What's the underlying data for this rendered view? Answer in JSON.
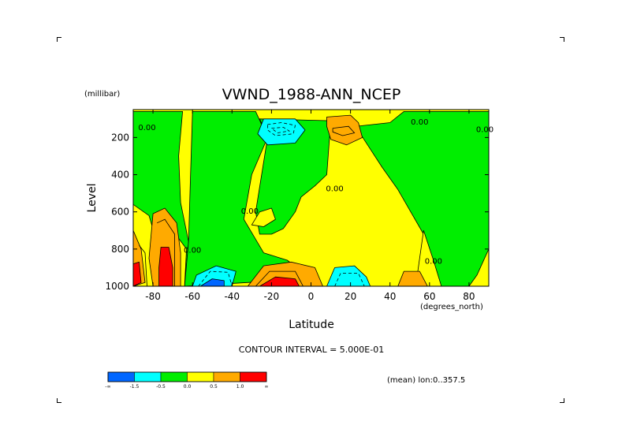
{
  "chart_data": {
    "type": "heatmap",
    "title": "VWND_1988-ANN_NCEP",
    "xlabel": "Latitude",
    "xunits": "(degrees_north)",
    "ylabel": "Level",
    "yunits": "(millibar)",
    "xlim": [
      -90,
      90
    ],
    "ylim": [
      1000,
      50
    ],
    "xticks": [
      -80,
      -60,
      -40,
      -20,
      0,
      20,
      40,
      60,
      80
    ],
    "xtick_labels": [
      "-80",
      "-60",
      "-40",
      "-20",
      "0",
      "20",
      "40",
      "60",
      "80"
    ],
    "yticks": [
      200,
      400,
      600,
      800,
      1000
    ],
    "ytick_labels": [
      "200",
      "400",
      "600",
      "800",
      "1000"
    ],
    "contour_labels": [
      {
        "text": "0.00",
        "lat": -83,
        "lev": 160
      },
      {
        "text": "0.00",
        "lat": 55,
        "lev": 130
      },
      {
        "text": "0.00",
        "lat": 88,
        "lev": 170
      },
      {
        "text": "0.00",
        "lat": 12,
        "lev": 490
      },
      {
        "text": "0.00",
        "lat": -31,
        "lev": 610
      },
      {
        "text": "0.00",
        "lat": -60,
        "lev": 820
      },
      {
        "text": "0.00",
        "lat": 62,
        "lev": 880
      }
    ],
    "contour_interval": "CONTOUR INTERVAL = 5.000E-01",
    "legend": {
      "colors": [
        "#0066ff",
        "#00ffff",
        "#00ee00",
        "#ffff00",
        "#ffaa00",
        "#ff0000"
      ],
      "labels": [
        "-∞",
        "-1.5",
        "-0.5",
        "0.0",
        "0.5",
        "1.0",
        "∞"
      ]
    },
    "footnote": "(mean) lon:0..357.5",
    "regions": [
      {
        "fill": "#00ee00",
        "points": [
          [
            -90,
            60
          ],
          [
            -65,
            60
          ],
          [
            -67,
            300
          ],
          [
            -66,
            550
          ],
          [
            -62,
            760
          ],
          [
            -64,
            1000
          ],
          [
            -90,
            1000
          ]
        ]
      },
      {
        "fill": "#00ee00",
        "points": [
          [
            -60,
            60
          ],
          [
            -28,
            60
          ],
          [
            -22,
            200
          ],
          [
            -30,
            400
          ],
          [
            -34,
            640
          ],
          [
            -24,
            820
          ],
          [
            -12,
            860
          ],
          [
            0,
            960
          ],
          [
            -64,
            1000
          ],
          [
            -62,
            760
          ],
          [
            -61,
            400
          ]
        ]
      },
      {
        "fill": "#00ee00",
        "points": [
          [
            -26,
            100
          ],
          [
            10,
            110
          ],
          [
            8,
            400
          ],
          [
            2,
            460
          ],
          [
            -5,
            520
          ],
          [
            -8,
            600
          ],
          [
            -14,
            690
          ],
          [
            -20,
            720
          ],
          [
            -26,
            720
          ],
          [
            -28,
            600
          ],
          [
            -22,
            200
          ]
        ]
      },
      {
        "fill": "#00ee00",
        "points": [
          [
            14,
            150
          ],
          [
            40,
            120
          ],
          [
            47,
            60
          ],
          [
            84,
            60
          ],
          [
            90,
            60
          ],
          [
            90,
            800
          ],
          [
            84,
            940
          ],
          [
            80,
            1000
          ],
          [
            62,
            1000
          ],
          [
            57,
            720
          ],
          [
            44,
            480
          ],
          [
            36,
            360
          ],
          [
            25,
            180
          ]
        ]
      },
      {
        "fill": "#ffff00",
        "points": [
          [
            53,
            1000
          ],
          [
            57,
            700
          ],
          [
            62,
            860
          ],
          [
            66,
            1000
          ]
        ]
      },
      {
        "fill": "#ffff00",
        "points": [
          [
            -30,
            670
          ],
          [
            -26,
            600
          ],
          [
            -20,
            580
          ],
          [
            -18,
            640
          ],
          [
            -24,
            680
          ]
        ]
      },
      {
        "fill": "#ffff00",
        "points": [
          [
            -90,
            560
          ],
          [
            -82,
            620
          ],
          [
            -77,
            800
          ],
          [
            -70,
            700
          ],
          [
            -63,
            800
          ],
          [
            -64,
            1000
          ],
          [
            -90,
            1000
          ]
        ]
      },
      {
        "fill": "#ffaa00",
        "points": [
          [
            -90,
            700
          ],
          [
            -86,
            800
          ],
          [
            -84,
            980
          ],
          [
            -90,
            1000
          ]
        ]
      },
      {
        "fill": "#ffaa00",
        "points": [
          [
            -80,
            610
          ],
          [
            -74,
            580
          ],
          [
            -68,
            660
          ],
          [
            -66,
            820
          ],
          [
            -66,
            1000
          ],
          [
            -80,
            1000
          ],
          [
            -82,
            850
          ]
        ]
      },
      {
        "fill": "#ff0000",
        "points": [
          [
            -90,
            880
          ],
          [
            -87,
            870
          ],
          [
            -86,
            980
          ],
          [
            -90,
            1000
          ]
        ]
      },
      {
        "fill": "#ff0000",
        "points": [
          [
            -76,
            790
          ],
          [
            -72,
            790
          ],
          [
            -70,
            900
          ],
          [
            -70,
            1000
          ],
          [
            -77,
            1000
          ],
          [
            -77,
            900
          ]
        ]
      },
      {
        "fill": "#00ffff",
        "points": [
          [
            -24,
            100
          ],
          [
            -8,
            100
          ],
          [
            -3,
            160
          ],
          [
            -8,
            230
          ],
          [
            -22,
            240
          ],
          [
            -27,
            180
          ]
        ]
      },
      {
        "fill": "#ffaa00",
        "points": [
          [
            8,
            90
          ],
          [
            20,
            80
          ],
          [
            24,
            120
          ],
          [
            26,
            200
          ],
          [
            18,
            240
          ],
          [
            10,
            210
          ],
          [
            8,
            140
          ]
        ]
      },
      {
        "fill": "#00ffff",
        "points": [
          [
            -60,
            1000
          ],
          [
            -58,
            940
          ],
          [
            -48,
            890
          ],
          [
            -38,
            920
          ],
          [
            -40,
            1000
          ]
        ]
      },
      {
        "fill": "#0066ff",
        "points": [
          [
            -56,
            1000
          ],
          [
            -50,
            960
          ],
          [
            -44,
            970
          ],
          [
            -44,
            1000
          ]
        ]
      },
      {
        "fill": "#ffaa00",
        "points": [
          [
            -32,
            1000
          ],
          [
            -24,
            890
          ],
          [
            -10,
            870
          ],
          [
            2,
            900
          ],
          [
            6,
            1000
          ]
        ]
      },
      {
        "fill": "#ff0000",
        "points": [
          [
            -26,
            1000
          ],
          [
            -18,
            950
          ],
          [
            -8,
            960
          ],
          [
            -6,
            1000
          ]
        ]
      },
      {
        "fill": "#00ffff",
        "points": [
          [
            8,
            1000
          ],
          [
            12,
            900
          ],
          [
            22,
            890
          ],
          [
            28,
            950
          ],
          [
            30,
            1000
          ]
        ]
      },
      {
        "fill": "#ffaa00",
        "points": [
          [
            44,
            1000
          ],
          [
            47,
            920
          ],
          [
            55,
            920
          ],
          [
            59,
            1000
          ]
        ]
      }
    ],
    "contour_lines": [
      {
        "dashed": true,
        "points": [
          [
            -22,
            130
          ],
          [
            -15,
            120
          ],
          [
            -8,
            135
          ],
          [
            -9,
            180
          ],
          [
            -18,
            190
          ],
          [
            -22,
            160
          ],
          [
            -22,
            130
          ]
        ]
      },
      {
        "dashed": true,
        "points": [
          [
            -20,
            150
          ],
          [
            -14,
            145
          ],
          [
            -11,
            165
          ],
          [
            -17,
            175
          ],
          [
            -20,
            150
          ]
        ]
      },
      {
        "dashed": false,
        "points": [
          [
            11,
            150
          ],
          [
            19,
            140
          ],
          [
            22,
            175
          ],
          [
            16,
            190
          ],
          [
            11,
            170
          ],
          [
            11,
            150
          ]
        ]
      },
      {
        "dashed": true,
        "points": [
          [
            -57,
            1000
          ],
          [
            -51,
            920
          ],
          [
            -42,
            925
          ],
          [
            -40,
            1000
          ]
        ]
      },
      {
        "dashed": true,
        "points": [
          [
            12,
            1000
          ],
          [
            15,
            930
          ],
          [
            24,
            930
          ],
          [
            27,
            1000
          ]
        ]
      },
      {
        "dashed": false,
        "points": [
          [
            -28,
            1000
          ],
          [
            -21,
            920
          ],
          [
            -8,
            920
          ],
          [
            -4,
            1000
          ]
        ]
      },
      {
        "dashed": false,
        "points": [
          [
            -87,
            780
          ],
          [
            -84,
            820
          ],
          [
            -83,
            1000
          ]
        ]
      },
      {
        "dashed": false,
        "points": [
          [
            -78,
            660
          ],
          [
            -74,
            640
          ],
          [
            -69,
            720
          ],
          [
            -69,
            1000
          ]
        ]
      }
    ]
  }
}
